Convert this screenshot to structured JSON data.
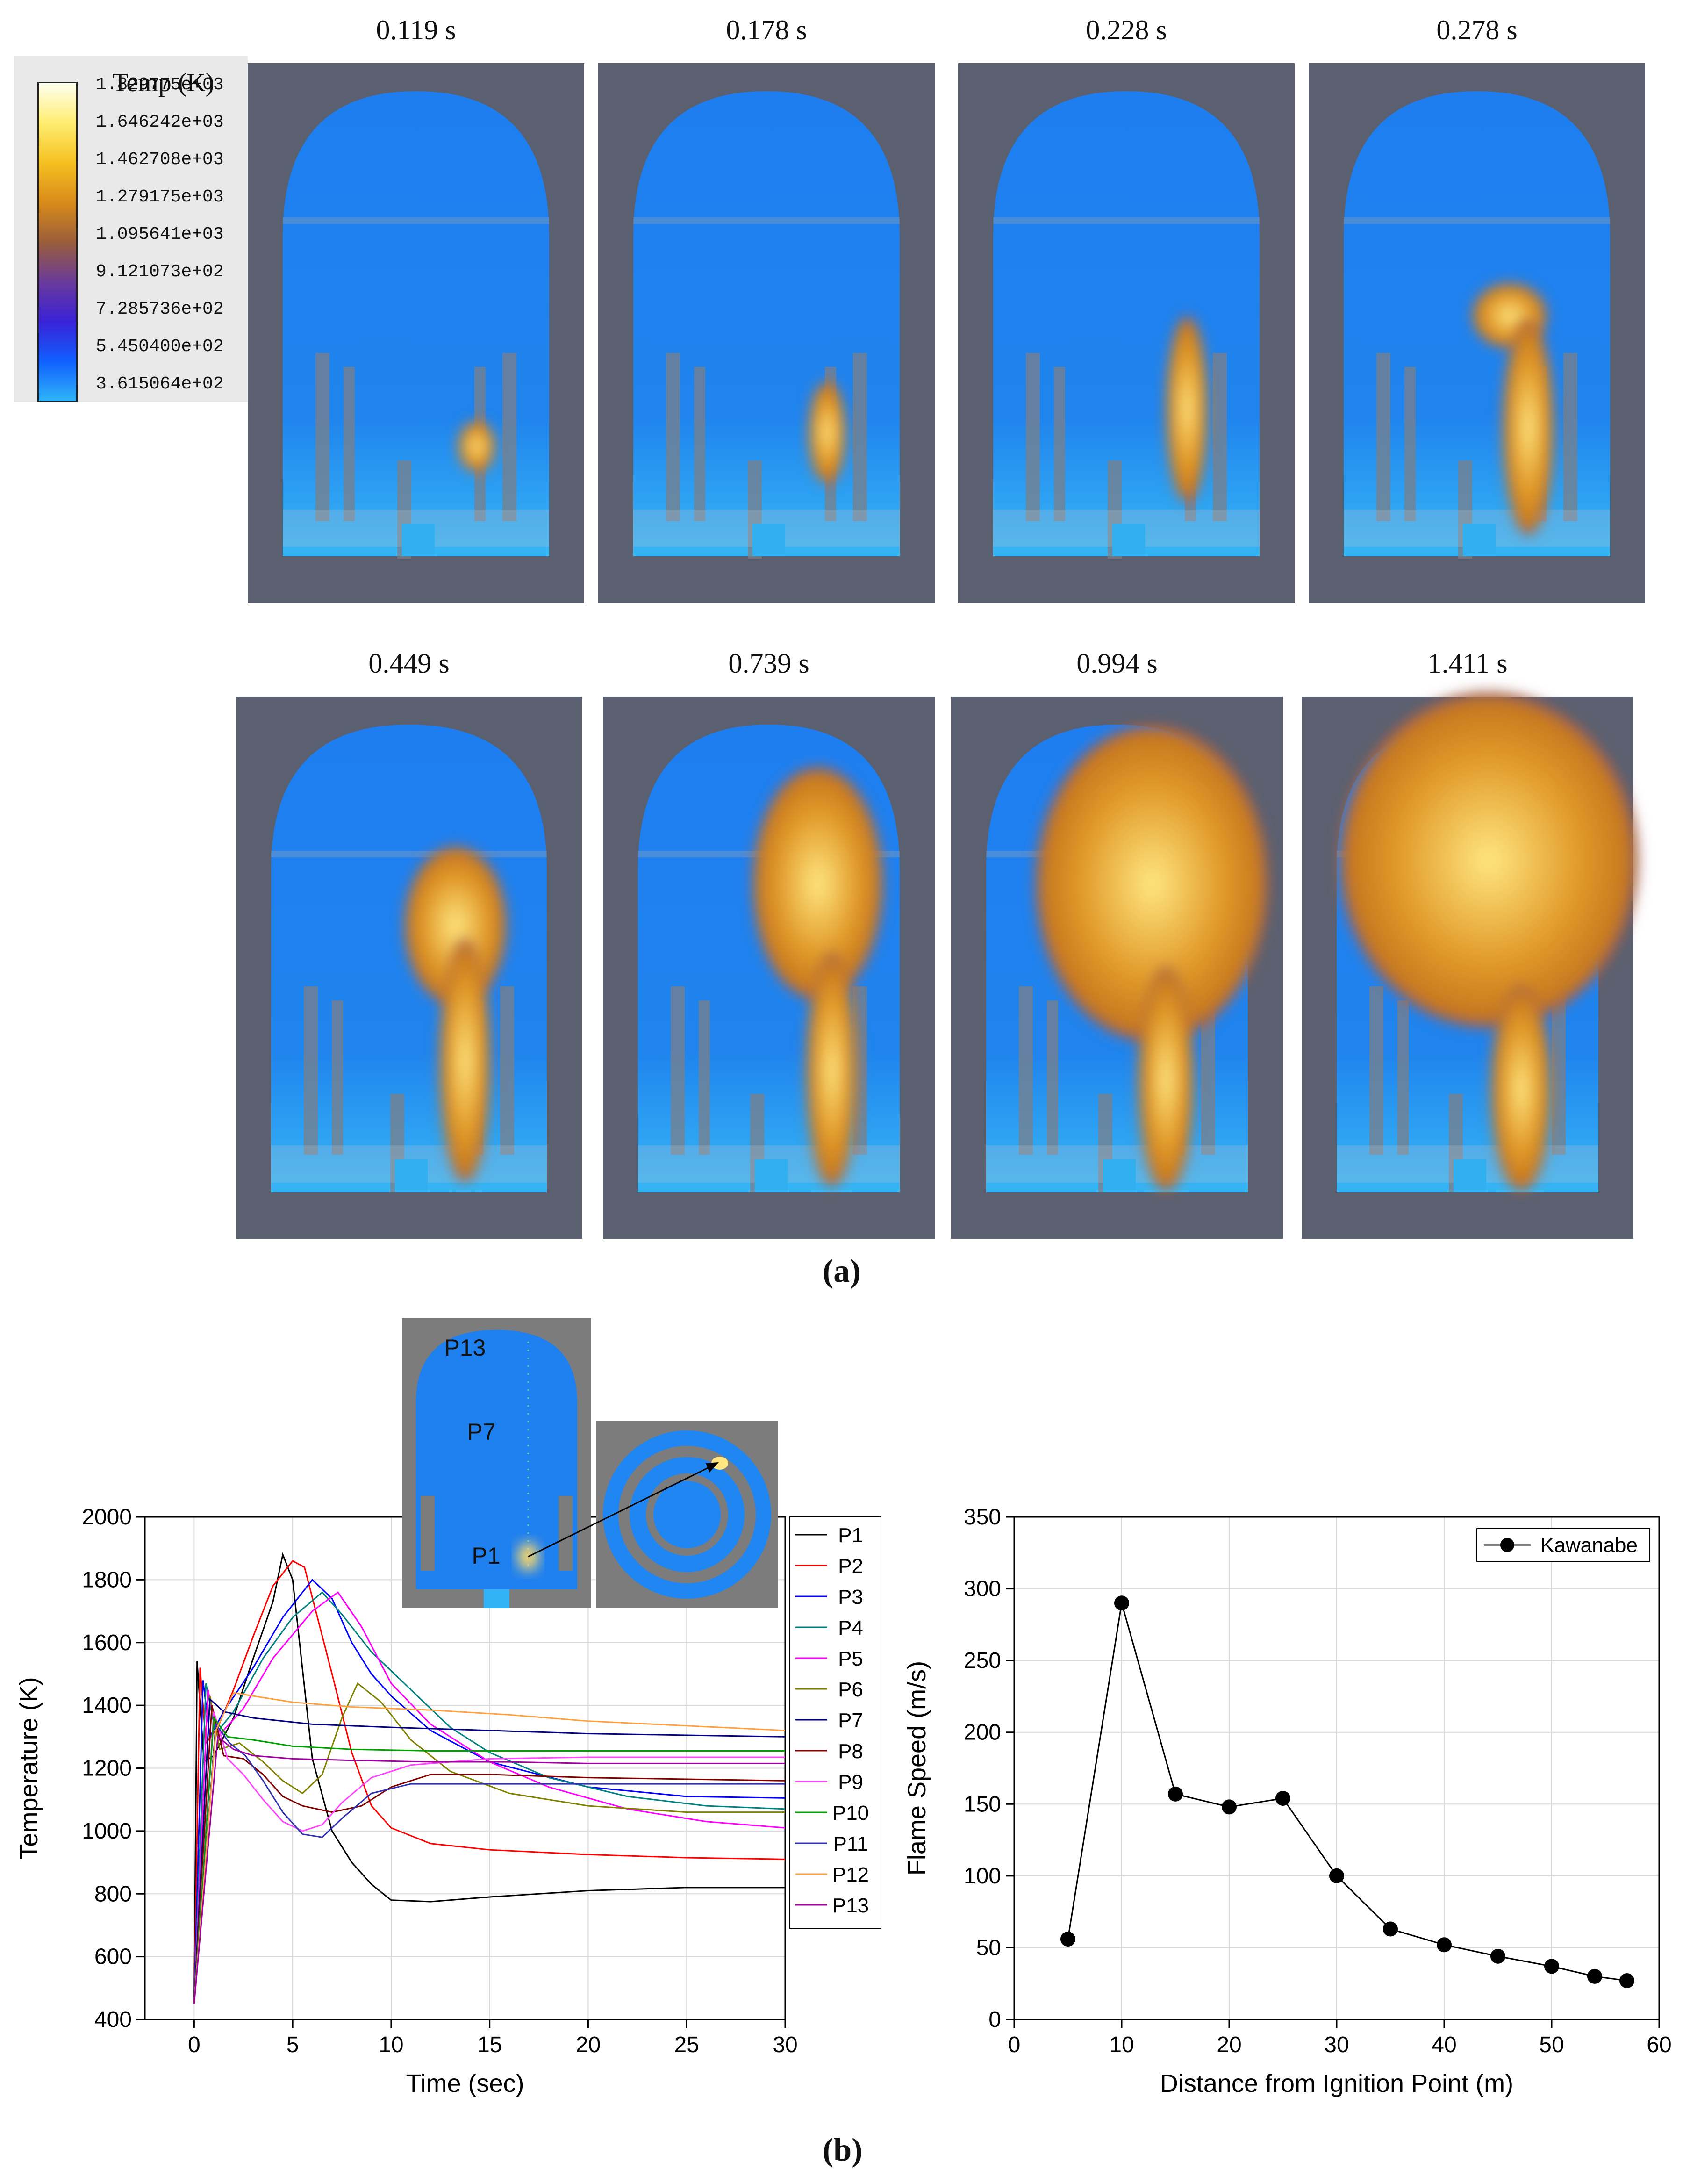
{
  "colorbar": {
    "title": "Temp (K)",
    "labels": [
      "1.829775e+03",
      "1.646242e+03",
      "1.462708e+03",
      "1.279175e+03",
      "1.095641e+03",
      "9.121073e+02",
      "7.285736e+02",
      "5.450400e+02",
      "3.615064e+02"
    ],
    "stops": [
      "#fffff0",
      "#ffee70",
      "#f5c020",
      "#d98b1a",
      "#9a5e3a",
      "#6a3a9a",
      "#3a22d8",
      "#1060ff",
      "#30b4f8"
    ]
  },
  "snapshots": {
    "times": [
      "0.119 s",
      "0.178 s",
      "0.228 s",
      "0.278 s",
      "0.449 s",
      "0.739 s",
      "0.994 s",
      "1.411 s"
    ]
  },
  "captions": {
    "a": "(a)",
    "b": "(b)"
  },
  "inset": {
    "labels": [
      "P13",
      "P7",
      "P1"
    ]
  },
  "colors": {
    "background_panel": "#5a6070",
    "cold_gas": "#1e80f0",
    "flame": "#e09a2a"
  },
  "chart_data": [
    {
      "type": "line",
      "xlabel": "Time (sec)",
      "ylabel": "Temperature (K)",
      "xlim": [
        -2.5,
        30
      ],
      "ylim": [
        400,
        2000
      ],
      "xticks": [
        0,
        5,
        10,
        15,
        20,
        25,
        30
      ],
      "yticks": [
        400,
        600,
        800,
        1000,
        1200,
        1400,
        1600,
        1800,
        2000
      ],
      "grid": true,
      "legend": "right",
      "series": [
        {
          "name": "P1",
          "color": "#000000",
          "points": [
            [
              0,
              450
            ],
            [
              0.15,
              1540
            ],
            [
              0.5,
              1220
            ],
            [
              1,
              1240
            ],
            [
              2,
              1360
            ],
            [
              3,
              1550
            ],
            [
              4,
              1730
            ],
            [
              4.5,
              1880
            ],
            [
              5,
              1800
            ],
            [
              6,
              1230
            ],
            [
              7,
              1000
            ],
            [
              8,
              900
            ],
            [
              9,
              830
            ],
            [
              10,
              780
            ],
            [
              12,
              775
            ],
            [
              15,
              790
            ],
            [
              20,
              810
            ],
            [
              25,
              820
            ],
            [
              30,
              820
            ]
          ]
        },
        {
          "name": "P2",
          "color": "#ff0000",
          "points": [
            [
              0,
              450
            ],
            [
              0.3,
              1520
            ],
            [
              0.6,
              1280
            ],
            [
              1.2,
              1330
            ],
            [
              2,
              1450
            ],
            [
              3,
              1620
            ],
            [
              4,
              1780
            ],
            [
              5,
              1860
            ],
            [
              5.6,
              1840
            ],
            [
              7,
              1500
            ],
            [
              8,
              1250
            ],
            [
              9,
              1080
            ],
            [
              10,
              1010
            ],
            [
              12,
              960
            ],
            [
              15,
              940
            ],
            [
              20,
              925
            ],
            [
              25,
              915
            ],
            [
              30,
              910
            ]
          ]
        },
        {
          "name": "P3",
          "color": "#0000ff",
          "points": [
            [
              0,
              450
            ],
            [
              0.45,
              1480
            ],
            [
              0.8,
              1300
            ],
            [
              1.5,
              1380
            ],
            [
              3,
              1520
            ],
            [
              4.5,
              1680
            ],
            [
              6,
              1800
            ],
            [
              7,
              1740
            ],
            [
              8,
              1600
            ],
            [
              9,
              1500
            ],
            [
              10,
              1430
            ],
            [
              12,
              1320
            ],
            [
              15,
              1220
            ],
            [
              20,
              1140
            ],
            [
              25,
              1110
            ],
            [
              30,
              1105
            ]
          ]
        },
        {
          "name": "P4",
          "color": "#008080",
          "points": [
            [
              0,
              450
            ],
            [
              0.6,
              1470
            ],
            [
              1.1,
              1310
            ],
            [
              2,
              1380
            ],
            [
              3.5,
              1550
            ],
            [
              5,
              1680
            ],
            [
              6.5,
              1760
            ],
            [
              7.5,
              1690
            ],
            [
              9,
              1570
            ],
            [
              11,
              1450
            ],
            [
              13,
              1330
            ],
            [
              15,
              1250
            ],
            [
              18,
              1170
            ],
            [
              22,
              1110
            ],
            [
              26,
              1080
            ],
            [
              30,
              1070
            ]
          ]
        },
        {
          "name": "P5",
          "color": "#ff00ff",
          "points": [
            [
              0,
              450
            ],
            [
              0.7,
              1450
            ],
            [
              1.2,
              1300
            ],
            [
              2.5,
              1390
            ],
            [
              4,
              1550
            ],
            [
              6,
              1700
            ],
            [
              7.3,
              1760
            ],
            [
              8.5,
              1650
            ],
            [
              10,
              1470
            ],
            [
              12,
              1340
            ],
            [
              15,
              1220
            ],
            [
              18,
              1140
            ],
            [
              22,
              1070
            ],
            [
              26,
              1030
            ],
            [
              30,
              1010
            ]
          ]
        },
        {
          "name": "P6",
          "color": "#808000",
          "points": [
            [
              0,
              450
            ],
            [
              0.8,
              1430
            ],
            [
              1.3,
              1260
            ],
            [
              2.3,
              1280
            ],
            [
              3.5,
              1220
            ],
            [
              4.5,
              1160
            ],
            [
              5.5,
              1120
            ],
            [
              6.5,
              1180
            ],
            [
              7.5,
              1360
            ],
            [
              8.3,
              1470
            ],
            [
              9.5,
              1410
            ],
            [
              11,
              1290
            ],
            [
              13,
              1190
            ],
            [
              16,
              1120
            ],
            [
              20,
              1080
            ],
            [
              25,
              1060
            ],
            [
              30,
              1060
            ]
          ]
        },
        {
          "name": "P7",
          "color": "#000080",
          "points": [
            [
              0,
              450
            ],
            [
              0.8,
              1420
            ],
            [
              1.5,
              1380
            ],
            [
              3,
              1360
            ],
            [
              6,
              1340
            ],
            [
              10,
              1330
            ],
            [
              15,
              1320
            ],
            [
              20,
              1310
            ],
            [
              25,
              1305
            ],
            [
              30,
              1300
            ]
          ]
        },
        {
          "name": "P8",
          "color": "#800000",
          "points": [
            [
              0,
              450
            ],
            [
              0.9,
              1400
            ],
            [
              1.5,
              1240
            ],
            [
              2.5,
              1230
            ],
            [
              3.5,
              1180
            ],
            [
              4.5,
              1110
            ],
            [
              5.5,
              1080
            ],
            [
              7,
              1060
            ],
            [
              8.5,
              1080
            ],
            [
              10,
              1140
            ],
            [
              12,
              1180
            ],
            [
              15,
              1180
            ],
            [
              20,
              1170
            ],
            [
              25,
              1165
            ],
            [
              30,
              1160
            ]
          ]
        },
        {
          "name": "P9",
          "color": "#ff44ff",
          "points": [
            [
              0,
              450
            ],
            [
              1.0,
              1380
            ],
            [
              1.7,
              1230
            ],
            [
              2.5,
              1180
            ],
            [
              3.5,
              1100
            ],
            [
              4.5,
              1030
            ],
            [
              5.5,
              1000
            ],
            [
              6.5,
              1020
            ],
            [
              7.5,
              1090
            ],
            [
              9,
              1170
            ],
            [
              11,
              1210
            ],
            [
              15,
              1230
            ],
            [
              20,
              1235
            ],
            [
              25,
              1235
            ],
            [
              30,
              1235
            ]
          ]
        },
        {
          "name": "P10",
          "color": "#00a000",
          "points": [
            [
              0,
              450
            ],
            [
              1.0,
              1360
            ],
            [
              1.7,
              1300
            ],
            [
              3,
              1290
            ],
            [
              5,
              1270
            ],
            [
              8,
              1260
            ],
            [
              12,
              1255
            ],
            [
              16,
              1255
            ],
            [
              20,
              1255
            ],
            [
              25,
              1255
            ],
            [
              30,
              1255
            ]
          ]
        },
        {
          "name": "P11",
          "color": "#3030b0",
          "points": [
            [
              0,
              450
            ],
            [
              1.1,
              1340
            ],
            [
              1.8,
              1280
            ],
            [
              2.6,
              1240
            ],
            [
              3.5,
              1160
            ],
            [
              4.5,
              1060
            ],
            [
              5.5,
              990
            ],
            [
              6.5,
              980
            ],
            [
              7.5,
              1040
            ],
            [
              9,
              1120
            ],
            [
              11,
              1150
            ],
            [
              15,
              1150
            ],
            [
              20,
              1150
            ],
            [
              25,
              1150
            ],
            [
              30,
              1150
            ]
          ]
        },
        {
          "name": "P12",
          "color": "#ffa040",
          "points": [
            [
              0,
              450
            ],
            [
              1.1,
              1320
            ],
            [
              2,
              1440
            ],
            [
              3,
              1430
            ],
            [
              5,
              1410
            ],
            [
              8,
              1395
            ],
            [
              12,
              1385
            ],
            [
              16,
              1370
            ],
            [
              20,
              1350
            ],
            [
              25,
              1335
            ],
            [
              30,
              1320
            ]
          ]
        },
        {
          "name": "P13",
          "color": "#a000a0",
          "points": [
            [
              0,
              450
            ],
            [
              1.2,
              1300
            ],
            [
              2,
              1260
            ],
            [
              3,
              1240
            ],
            [
              5,
              1230
            ],
            [
              8,
              1225
            ],
            [
              12,
              1220
            ],
            [
              16,
              1220
            ],
            [
              20,
              1215
            ],
            [
              25,
              1215
            ],
            [
              30,
              1215
            ]
          ]
        }
      ]
    },
    {
      "type": "line",
      "xlabel": "Distance from Ignition Point (m)",
      "ylabel": "Flame Speed (m/s)",
      "xlim": [
        0,
        60
      ],
      "ylim": [
        0,
        350
      ],
      "xticks": [
        0,
        10,
        20,
        30,
        40,
        50,
        60
      ],
      "yticks": [
        0,
        50,
        100,
        150,
        200,
        250,
        300,
        350
      ],
      "grid": true,
      "legend": "top-right",
      "series": [
        {
          "name": "Kawanabe",
          "color": "#000000",
          "points": [
            [
              5,
              56
            ],
            [
              10,
              290
            ],
            [
              15,
              157
            ],
            [
              20,
              148
            ],
            [
              25,
              154
            ],
            [
              30,
              100
            ],
            [
              35,
              63
            ],
            [
              40,
              52
            ],
            [
              45,
              44
            ],
            [
              50,
              37
            ],
            [
              54,
              30
            ],
            [
              57,
              27
            ]
          ]
        }
      ]
    }
  ]
}
